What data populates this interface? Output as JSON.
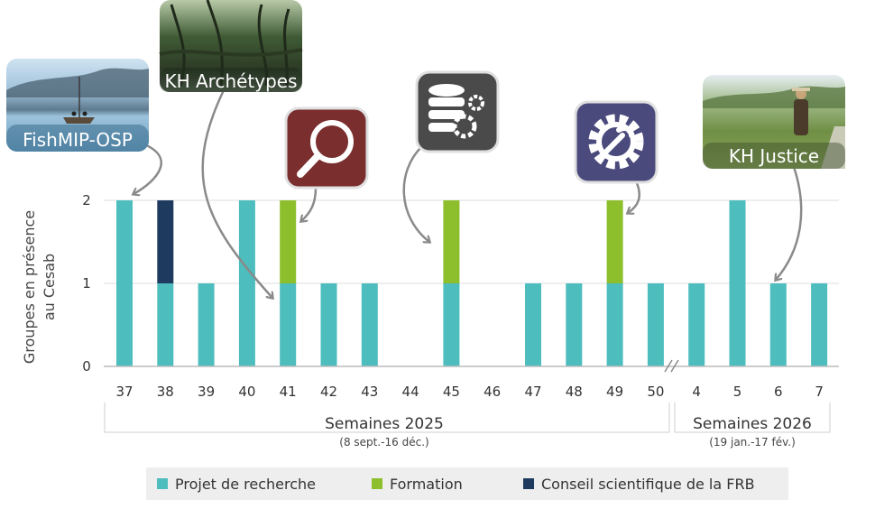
{
  "chart_data": {
    "type": "bar",
    "stacked": true,
    "ylabel": "Groupes en présence au Cesab",
    "ylabel_lines": [
      "Groupes en présence",
      "au Cesab"
    ],
    "ylim": [
      0,
      2
    ],
    "yticks": [
      "0",
      "1",
      "2"
    ],
    "grid": true,
    "categories": [
      "37",
      "38",
      "39",
      "40",
      "41",
      "42",
      "43",
      "44",
      "45",
      "46",
      "47",
      "48",
      "49",
      "50",
      "4",
      "5",
      "6",
      "7"
    ],
    "axis_break_after": "50",
    "series": [
      {
        "name": "Projet de recherche",
        "color": "#4DBDBE",
        "values": [
          2,
          1,
          1,
          2,
          1,
          1,
          1,
          0,
          1,
          0,
          1,
          1,
          1,
          1,
          1,
          2,
          1,
          1
        ]
      },
      {
        "name": "Formation",
        "color": "#8DBE2C",
        "values": [
          0,
          0,
          0,
          0,
          1,
          0,
          0,
          0,
          1,
          0,
          0,
          0,
          1,
          0,
          0,
          0,
          0,
          0
        ]
      },
      {
        "name": "Conseil scientifique de la FRB",
        "color": "#1F3A5F",
        "values": [
          0,
          1,
          0,
          0,
          0,
          0,
          0,
          0,
          0,
          0,
          0,
          0,
          0,
          0,
          0,
          0,
          0,
          0
        ]
      }
    ],
    "groups": [
      {
        "title": "Semaines 2025",
        "subtitle": "(8 sept.-16 déc.)"
      },
      {
        "title": "Semaines 2026",
        "subtitle": "(19 jan.-17 fév.)"
      }
    ],
    "legend_position": "bottom",
    "annotations": [
      {
        "label": "FishMIP-OSP",
        "type": "photo",
        "target": "38"
      },
      {
        "label": "KH Archétypes",
        "type": "photo",
        "target": "41"
      },
      {
        "label": "KH Justice",
        "type": "photo",
        "target": "6"
      },
      {
        "icon": "magnifier-icon",
        "target": "41"
      },
      {
        "icon": "database-gears-icon",
        "target": "45"
      },
      {
        "icon": "gear-wrench-icon",
        "target": "49"
      }
    ]
  }
}
